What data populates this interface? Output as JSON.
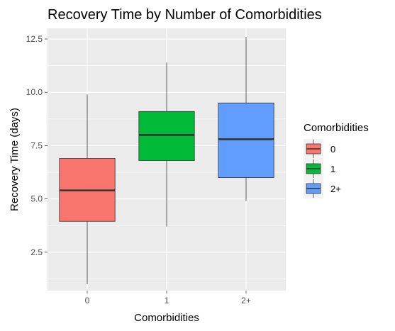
{
  "chart_data": {
    "type": "box",
    "title": "Recovery Time by Number of Comorbidities",
    "xlabel": "Comorbidities",
    "ylabel": "Recovery Time (days)",
    "categories": [
      "0",
      "1",
      "2+"
    ],
    "ylim": [
      0.7,
      13.0
    ],
    "yticks": [
      2.5,
      5.0,
      7.5,
      10.0,
      12.5
    ],
    "ytick_labels": [
      "2.5",
      "5.0",
      "7.5",
      "10.0",
      "12.5"
    ],
    "grid": true,
    "legend": {
      "title": "Comorbidities",
      "placement": "right",
      "entries": [
        "0",
        "1",
        "2+"
      ]
    },
    "series": [
      {
        "category": "0",
        "min": 1.0,
        "q1": 3.95,
        "median": 5.4,
        "q3": 6.9,
        "max": 9.9,
        "color": "#F8766D"
      },
      {
        "category": "1",
        "min": 3.7,
        "q1": 6.8,
        "median": 8.0,
        "q3": 9.1,
        "max": 11.4,
        "color": "#00BA38"
      },
      {
        "category": "2+",
        "min": 4.9,
        "q1": 6.0,
        "median": 7.8,
        "q3": 9.5,
        "max": 12.6,
        "color": "#619CFF"
      }
    ]
  }
}
